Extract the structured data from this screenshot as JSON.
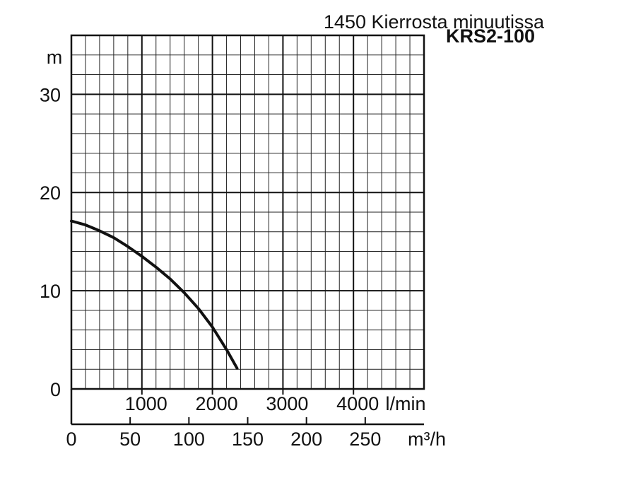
{
  "chart_data": {
    "type": "line",
    "title": "1450 Kierrosta minuutissa",
    "subtitle": "KRS2-100",
    "ylabel": "m",
    "xlabel_primary_unit": "l/min",
    "xlabel_secondary_unit": "m³/h",
    "ylim": [
      0,
      36
    ],
    "xlim": [
      0,
      5000
    ],
    "y_ticks": [
      "0",
      "10",
      "20",
      "30"
    ],
    "y_tick_values": [
      0,
      10,
      20,
      30
    ],
    "x_ticks_lpm": [
      "1000",
      "2000",
      "3000",
      "4000"
    ],
    "x_tick_values_lpm": [
      1000,
      2000,
      3000,
      4000
    ],
    "x_ticks_m3h": [
      "0",
      "50",
      "100",
      "150",
      "200",
      "250"
    ],
    "x_tick_values_m3h": [
      0,
      50,
      100,
      150,
      200,
      250
    ],
    "grid": true,
    "series": [
      {
        "x": [
          0,
          200,
          400,
          600,
          800,
          1000,
          1200,
          1400,
          1600,
          1800,
          2000,
          2200,
          2350
        ],
        "y": [
          17.1,
          16.7,
          16.1,
          15.4,
          14.5,
          13.5,
          12.4,
          11.2,
          9.8,
          8.2,
          6.3,
          4.0,
          2.1
        ]
      }
    ]
  }
}
